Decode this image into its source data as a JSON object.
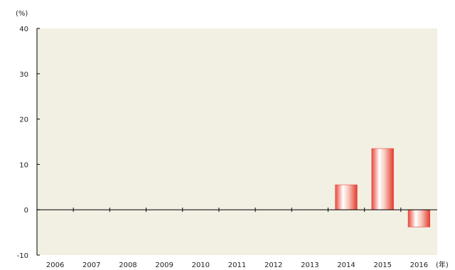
{
  "chart_data": {
    "type": "bar",
    "title": "",
    "xlabel": "",
    "ylabel": "",
    "y_unit_label": "(%)",
    "x_unit_label": "(年)",
    "categories": [
      "2006",
      "2007",
      "2008",
      "2009",
      "2010",
      "2011",
      "2012",
      "2013",
      "2014",
      "2015",
      "2016"
    ],
    "values": [
      null,
      null,
      null,
      null,
      null,
      null,
      null,
      null,
      5.5,
      13.5,
      -3.8
    ],
    "ylim": [
      -10,
      40
    ],
    "yticks": [
      "40",
      "30",
      "20",
      "10",
      "0",
      "-10"
    ],
    "ytick_values": [
      40,
      30,
      20,
      10,
      0,
      -10
    ],
    "grid": false,
    "legend": "none",
    "colors": {
      "plot_background": "#f2efe3",
      "bar_edge": "#e8473a",
      "bar_center": "#ffffff",
      "axis": "#000000"
    }
  }
}
